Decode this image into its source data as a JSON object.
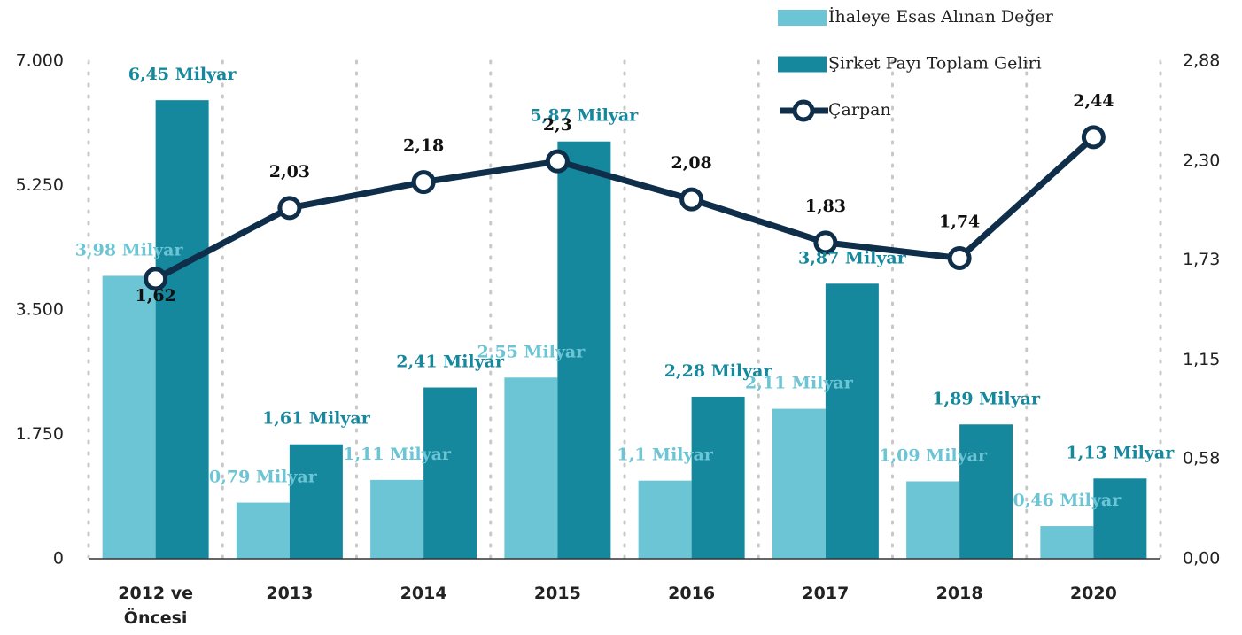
{
  "chart_data": {
    "type": "bar-line",
    "categories": [
      "2012 ve Öncesi",
      "2013",
      "2014",
      "2015",
      "2016",
      "2017",
      "2018",
      "2020"
    ],
    "series": [
      {
        "name": "İhaleye Esas Alınan Değer",
        "color": "#6cc5d5",
        "values": [
          3980,
          790,
          1110,
          2550,
          1100,
          2110,
          1090,
          460
        ],
        "value_labels": [
          "3,98 Milyar",
          "0,79 Milyar",
          "1,11 Milyar",
          "2,55 Milyar",
          "1,1 Milyar",
          "2,11 Milyar",
          "1,09 Milyar",
          "0,46 Milyar"
        ]
      },
      {
        "name": "Şirket Payı Toplam Geliri",
        "color": "#16889e",
        "values": [
          6450,
          1610,
          2410,
          5870,
          2280,
          3870,
          1890,
          1130
        ],
        "value_labels": [
          "6,45 Milyar",
          "1,61 Milyar",
          "2,41 Milyar",
          "5,87 Milyar",
          "2,28 Milyar",
          "3,87 Milyar",
          "1,89 Milyar",
          "1,13 Milyar"
        ]
      },
      {
        "name": "Çarpan",
        "color": "#0e2e4a",
        "axis": "y2",
        "values": [
          1.62,
          2.03,
          2.18,
          2.3,
          2.08,
          1.83,
          1.74,
          2.44
        ],
        "value_labels": [
          "1,62",
          "2,03",
          "2,18",
          "2,3",
          "2,08",
          "1,83",
          "1,74",
          "2,44"
        ]
      }
    ],
    "ylim": [
      0,
      7000
    ],
    "yticks": [
      0,
      {
        "value": 1750,
        "label": "1.750"
      },
      {
        "value": 3500,
        "label": "3.500"
      },
      {
        "value": 5250,
        "label": "5.250"
      },
      {
        "value": 7000,
        "label": "7.000"
      }
    ],
    "y2lim": [
      0,
      2.88
    ],
    "y2ticks": [
      {
        "value": 0,
        "label": "0,00"
      },
      {
        "value": 0.58,
        "label": "0,58"
      },
      {
        "value": 1.15,
        "label": "1,15"
      },
      {
        "value": 1.73,
        "label": "1,73"
      },
      {
        "value": 2.3,
        "label": "2,30"
      },
      {
        "value": 2.88,
        "label": "2,88"
      }
    ],
    "legend": "top-right"
  }
}
